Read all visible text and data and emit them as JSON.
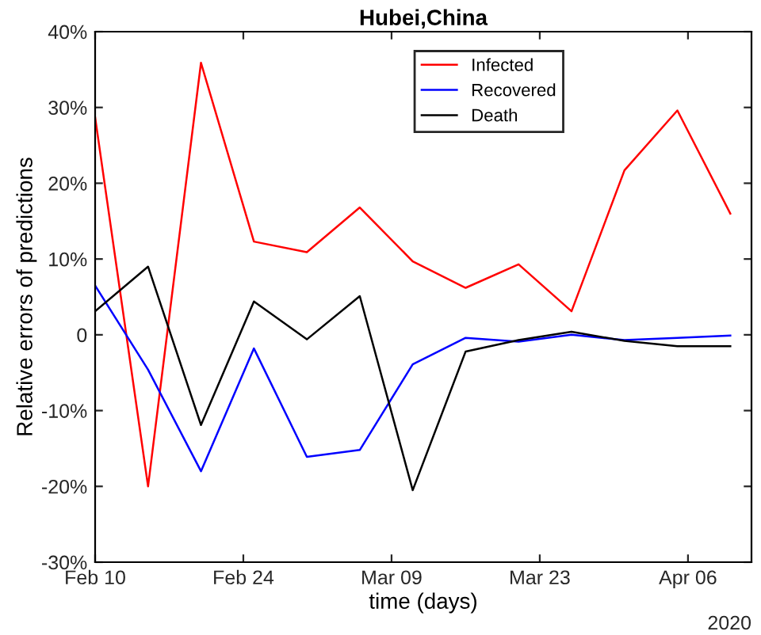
{
  "chart_data": {
    "type": "line",
    "title": "Hubei,China",
    "xlabel": "time (days)",
    "ylabel": "Relative errors of predictions",
    "x": [
      "2020-02-10",
      "2020-02-15",
      "2020-02-20",
      "2020-02-25",
      "2020-03-01",
      "2020-03-06",
      "2020-03-11",
      "2020-03-16",
      "2020-03-21",
      "2020-03-26",
      "2020-03-31",
      "2020-04-05",
      "2020-04-10"
    ],
    "series": [
      {
        "name": "Infected",
        "color": "#ff0000",
        "values": [
          28.7,
          -20.0,
          35.9,
          12.3,
          10.9,
          16.8,
          9.7,
          6.2,
          9.3,
          3.1,
          21.7,
          29.6,
          16.0
        ]
      },
      {
        "name": "Recovered",
        "color": "#0000ff",
        "values": [
          6.5,
          -4.6,
          -18.0,
          -1.8,
          -16.1,
          -15.2,
          -3.9,
          -0.4,
          -0.9,
          0.0,
          -0.7,
          -0.4,
          -0.1
        ]
      },
      {
        "name": "Death",
        "color": "#000000",
        "values": [
          3.1,
          9.0,
          -11.9,
          4.4,
          -0.6,
          5.1,
          -20.5,
          -2.2,
          -0.7,
          0.4,
          -0.8,
          -1.5,
          -1.5
        ]
      }
    ],
    "xlim": [
      "2020-02-10",
      "2020-04-12"
    ],
    "xticks": [
      {
        "value": "2020-02-10",
        "label": "Feb 10"
      },
      {
        "value": "2020-02-24",
        "label": "Feb 24"
      },
      {
        "value": "2020-03-09",
        "label": "Mar 09"
      },
      {
        "value": "2020-03-23",
        "label": "Mar 23"
      },
      {
        "value": "2020-04-06",
        "label": "Apr 06"
      }
    ],
    "ylim": [
      -30,
      40
    ],
    "yticks": [
      {
        "value": -30,
        "label": "-30%"
      },
      {
        "value": -20,
        "label": "-20%"
      },
      {
        "value": -10,
        "label": "-10%"
      },
      {
        "value": 0,
        "label": "0"
      },
      {
        "value": 10,
        "label": "10%"
      },
      {
        "value": 20,
        "label": "20%"
      },
      {
        "value": 30,
        "label": "30%"
      },
      {
        "value": 40,
        "label": "40%"
      }
    ],
    "annotations": [
      "2020"
    ],
    "legend": "top",
    "grid": false,
    "line_style": "solid",
    "marker": "none"
  }
}
